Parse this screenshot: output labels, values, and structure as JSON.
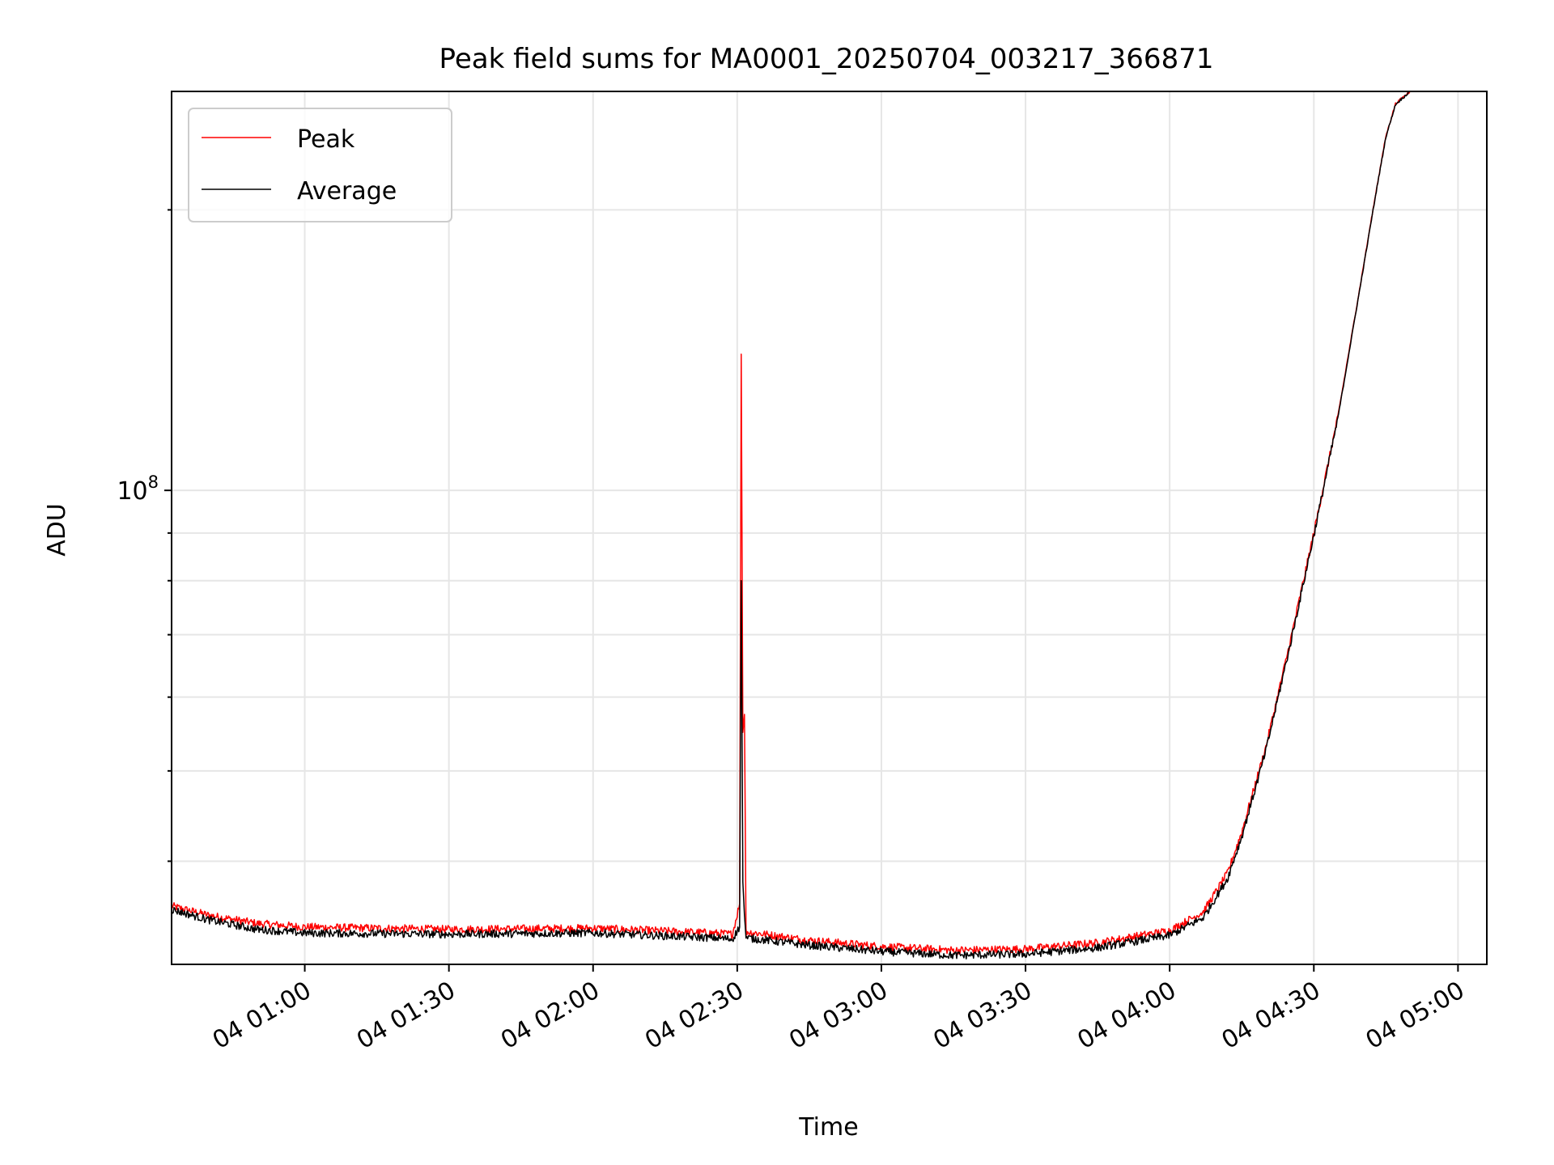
{
  "chart_data": {
    "type": "line",
    "title": "Peak field sums for MA0001_20250704_003217_366871",
    "xlabel": "Time",
    "ylabel": "ADU",
    "y_scale": "log",
    "ylim": [
      31000000,
      268000000
    ],
    "xlim": [
      "2025-07-04 00:32:17",
      "2025-07-04 05:06:00"
    ],
    "y_tick_label": "10^8",
    "y_tick_value": 100000000,
    "x_ticks": [
      {
        "t": "2025-07-04 01:00:00",
        "label": "04 01:00"
      },
      {
        "t": "2025-07-04 01:30:00",
        "label": "04 01:30"
      },
      {
        "t": "2025-07-04 02:00:00",
        "label": "04 02:00"
      },
      {
        "t": "2025-07-04 02:30:00",
        "label": "04 02:30"
      },
      {
        "t": "2025-07-04 03:00:00",
        "label": "04 03:00"
      },
      {
        "t": "2025-07-04 03:30:00",
        "label": "04 03:30"
      },
      {
        "t": "2025-07-04 04:00:00",
        "label": "04 04:00"
      },
      {
        "t": "2025-07-04 04:30:00",
        "label": "04 04:30"
      },
      {
        "t": "2025-07-04 05:00:00",
        "label": "04 05:00"
      }
    ],
    "grid": true,
    "legend_position": "top-left",
    "series": [
      {
        "name": "Peak",
        "color": "#ff0000",
        "points": [
          [
            "2025-07-04 00:32:17",
            35800000
          ],
          [
            "2025-07-04 00:40:00",
            35000000
          ],
          [
            "2025-07-04 00:50:00",
            34300000
          ],
          [
            "2025-07-04 01:00:00",
            34000000
          ],
          [
            "2025-07-04 01:30:00",
            33800000
          ],
          [
            "2025-07-04 02:00:00",
            33900000
          ],
          [
            "2025-07-04 02:25:00",
            33500000
          ],
          [
            "2025-07-04 02:29:00",
            33400000
          ],
          [
            "2025-07-04 02:30:30",
            36000000
          ],
          [
            "2025-07-04 02:30:50",
            140000000
          ],
          [
            "2025-07-04 02:31:10",
            55000000
          ],
          [
            "2025-07-04 02:31:30",
            57500000
          ],
          [
            "2025-07-04 02:31:50",
            33600000
          ],
          [
            "2025-07-04 02:45:00",
            32900000
          ],
          [
            "2025-07-04 03:00:00",
            32400000
          ],
          [
            "2025-07-04 03:15:00",
            32100000
          ],
          [
            "2025-07-04 03:30:00",
            32200000
          ],
          [
            "2025-07-04 03:45:00",
            32700000
          ],
          [
            "2025-07-04 04:00:00",
            33700000
          ],
          [
            "2025-07-04 04:07:00",
            35300000
          ],
          [
            "2025-07-04 04:12:00",
            38800000
          ],
          [
            "2025-07-04 04:15:00",
            43000000
          ],
          [
            "2025-07-04 04:20:00",
            53000000
          ],
          [
            "2025-07-04 04:25:00",
            68500000
          ],
          [
            "2025-07-04 04:30:00",
            90000000
          ],
          [
            "2025-07-04 04:35:00",
            120000000
          ],
          [
            "2025-07-04 04:40:00",
            170000000
          ],
          [
            "2025-07-04 04:43:00",
            210000000
          ],
          [
            "2025-07-04 04:45:00",
            240000000
          ],
          [
            "2025-07-04 04:47:00",
            260000000
          ],
          [
            "2025-07-04 04:50:00",
            268000000
          ]
        ]
      },
      {
        "name": "Average",
        "color": "#000000",
        "points": [
          [
            "2025-07-04 00:32:17",
            35500000
          ],
          [
            "2025-07-04 00:40:00",
            34600000
          ],
          [
            "2025-07-04 00:50:00",
            33800000
          ],
          [
            "2025-07-04 01:00:00",
            33500000
          ],
          [
            "2025-07-04 01:30:00",
            33400000
          ],
          [
            "2025-07-04 02:00:00",
            33500000
          ],
          [
            "2025-07-04 02:25:00",
            33100000
          ],
          [
            "2025-07-04 02:29:00",
            33000000
          ],
          [
            "2025-07-04 02:30:30",
            34000000
          ],
          [
            "2025-07-04 02:30:50",
            80000000
          ],
          [
            "2025-07-04 02:31:10",
            38000000
          ],
          [
            "2025-07-04 02:31:30",
            35000000
          ],
          [
            "2025-07-04 02:31:50",
            33100000
          ],
          [
            "2025-07-04 02:45:00",
            32500000
          ],
          [
            "2025-07-04 03:00:00",
            32000000
          ],
          [
            "2025-07-04 03:15:00",
            31700000
          ],
          [
            "2025-07-04 03:30:00",
            31800000
          ],
          [
            "2025-07-04 03:45:00",
            32300000
          ],
          [
            "2025-07-04 04:00:00",
            33300000
          ],
          [
            "2025-07-04 04:07:00",
            34800000
          ],
          [
            "2025-07-04 04:12:00",
            38300000
          ],
          [
            "2025-07-04 04:15:00",
            42500000
          ],
          [
            "2025-07-04 04:20:00",
            52500000
          ],
          [
            "2025-07-04 04:25:00",
            68000000
          ],
          [
            "2025-07-04 04:30:00",
            89500000
          ],
          [
            "2025-07-04 04:35:00",
            119500000
          ],
          [
            "2025-07-04 04:40:00",
            169500000
          ],
          [
            "2025-07-04 04:43:00",
            209500000
          ],
          [
            "2025-07-04 04:45:00",
            239500000
          ],
          [
            "2025-07-04 04:47:00",
            259500000
          ],
          [
            "2025-07-04 04:50:00",
            268000000
          ]
        ]
      }
    ]
  }
}
